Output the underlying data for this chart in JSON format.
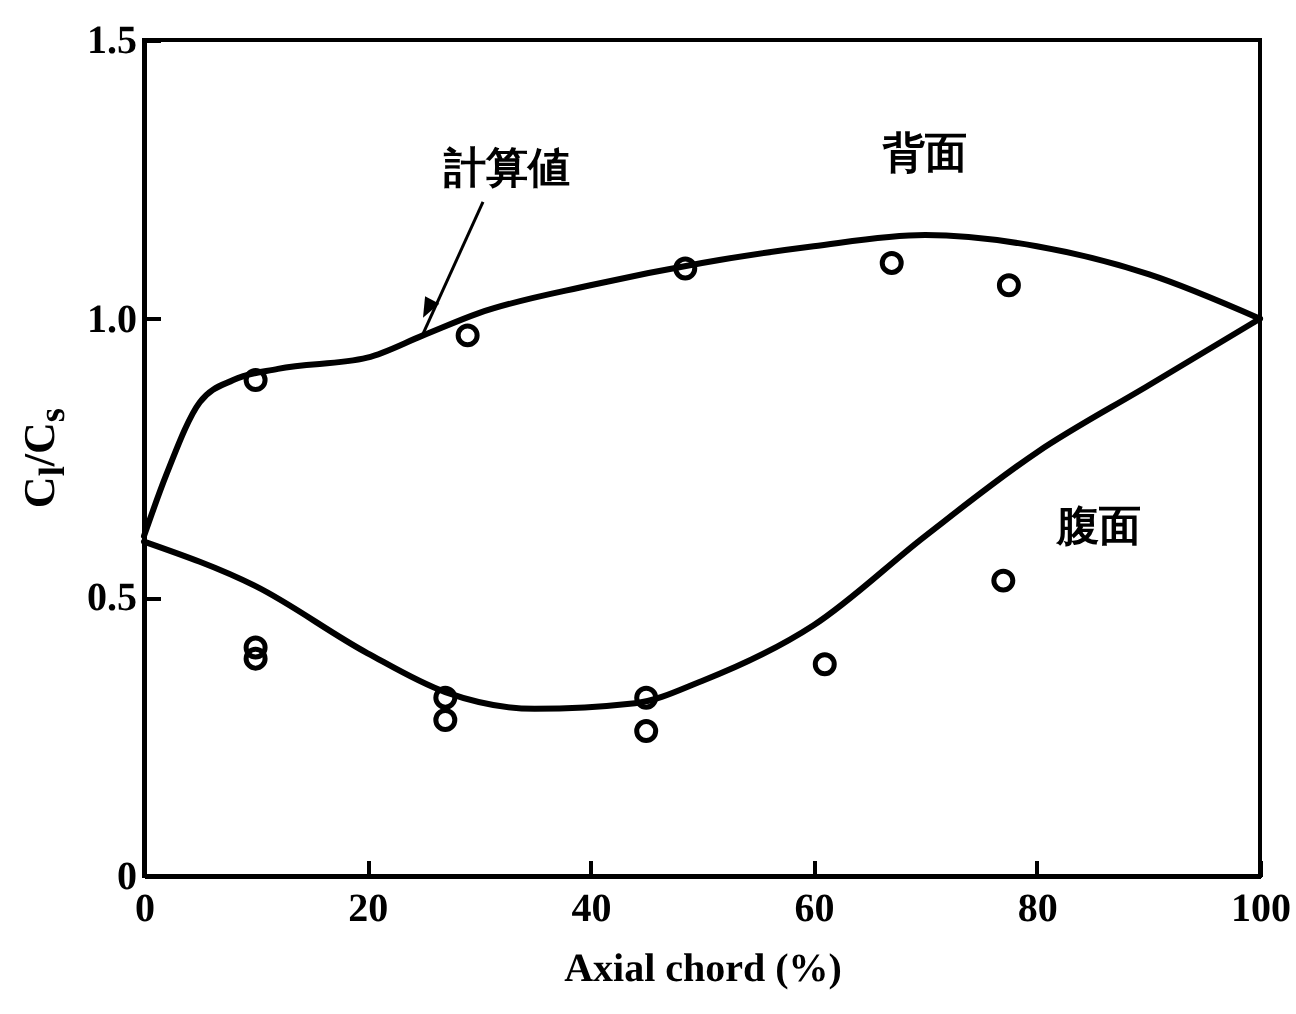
{
  "chart_data": {
    "type": "line",
    "xlabel": "Axial chord (%)",
    "ylabel": "C$_{l}$/C$_{s}$",
    "xlim": [
      0,
      100
    ],
    "xticks": [
      0,
      20,
      40,
      60,
      80,
      100
    ],
    "ylim": [
      0,
      1.5
    ],
    "yticks": [
      0,
      0.5,
      {
        "value": 1,
        "label": "1.0"
      },
      1.5
    ],
    "grid": false,
    "line_style": "solid",
    "annotations": [
      {
        "text": "計算値",
        "x": 25,
        "y": 0.98
      }
    ],
    "series": [
      {
        "name": "背面",
        "type": "line",
        "marker": "none",
        "color": "#000000",
        "x": [
          0,
          2,
          5,
          8,
          12,
          20,
          25,
          30,
          40,
          50,
          60,
          70,
          80,
          90,
          100
        ],
        "values": [
          0.61,
          0.72,
          0.85,
          0.89,
          0.91,
          0.93,
          0.97,
          1.01,
          1.06,
          1.1,
          1.13,
          1.15,
          1.13,
          1.08,
          1.0
        ]
      },
      {
        "name": "腹面",
        "type": "line",
        "marker": "none",
        "color": "#000000",
        "x": [
          0,
          10,
          20,
          27,
          35,
          44,
          50,
          60,
          70,
          80,
          90,
          100
        ],
        "values": [
          0.6,
          0.52,
          0.4,
          0.33,
          0.3,
          0.31,
          0.35,
          0.45,
          0.61,
          0.76,
          0.88,
          1.0
        ]
      },
      {
        "type": "scatter",
        "marker": "circle",
        "color": "#000000",
        "x": [
          10,
          29,
          48.5,
          67,
          77.5,
          10,
          10,
          27,
          27,
          45,
          45,
          61,
          77
        ],
        "values": [
          0.89,
          0.97,
          1.09,
          1.1,
          1.06,
          0.41,
          0.39,
          0.32,
          0.28,
          0.32,
          0.26,
          0.38,
          0.53
        ]
      }
    ]
  }
}
